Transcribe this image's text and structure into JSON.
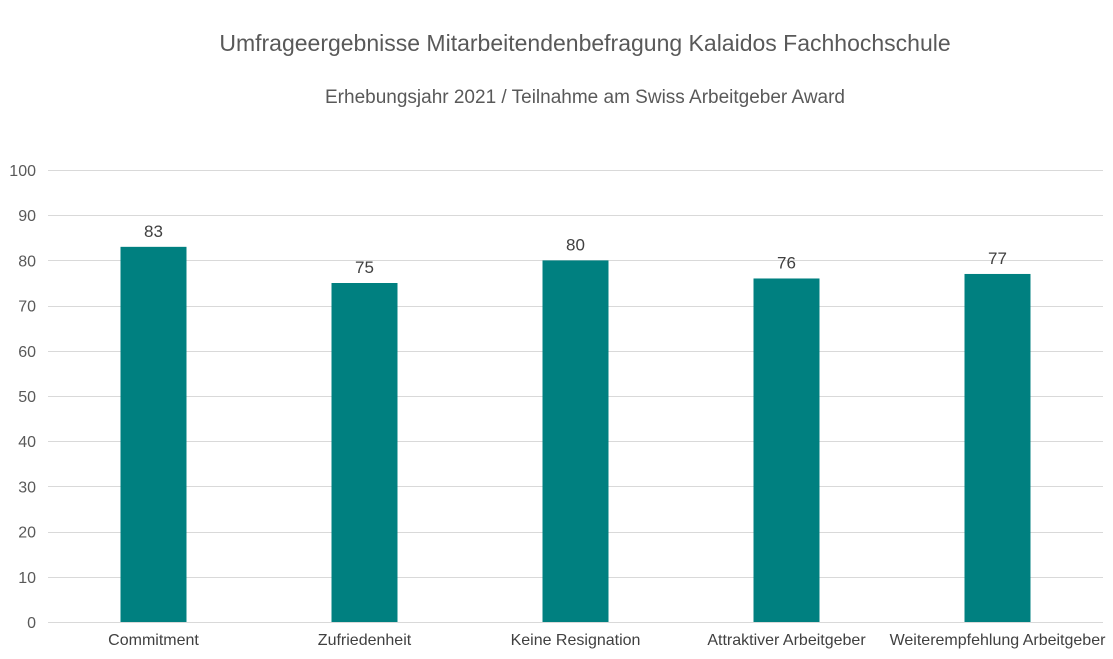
{
  "chart_data": {
    "type": "bar",
    "title": "Umfrageergebnisse Mitarbeitendenbefragung Kalaidos Fachhochschule",
    "subtitle": "Erhebungsjahr 2021 / Teilnahme am Swiss Arbeitgeber Award",
    "categories": [
      "Commitment",
      "Zufriedenheit",
      "Keine Resignation",
      "Attraktiver Arbeitgeber",
      "Weiterempfehlung Arbeitgeber"
    ],
    "values": [
      83,
      75,
      80,
      76,
      77
    ],
    "ylim": [
      0,
      100
    ],
    "yticks": [
      0,
      10,
      20,
      30,
      40,
      50,
      60,
      70,
      80,
      90,
      100
    ],
    "grid": true,
    "legend": "none",
    "bar_color": "#008080"
  }
}
